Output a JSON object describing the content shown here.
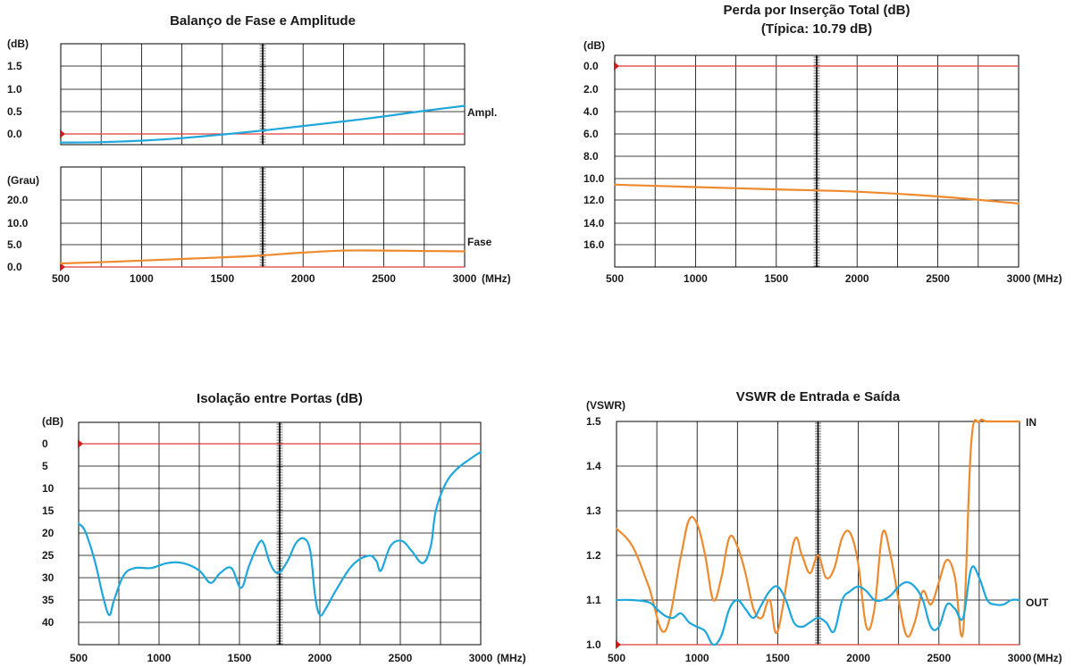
{
  "colors": {
    "blue": "#1ea7dc",
    "orange": "#ee8a2e",
    "ref": "#e23b3b",
    "grid": "#000000"
  },
  "chart_data": [
    {
      "type": "line",
      "title_lines": [
        "Balanço de Fase e Amplitude"
      ],
      "x_ticks": [
        "500",
        "1000",
        "1500",
        "2000",
        "2500",
        "3000"
      ],
      "x_unit": "(MHz)",
      "xlim": [
        500,
        3000
      ],
      "panels": [
        {
          "ylabel": "(dB)",
          "y_ticks": [
            "1.5",
            "1.0",
            "0.5",
            "0.0"
          ],
          "ylim": [
            0.0,
            2.0
          ],
          "invert_y": false,
          "series": [
            {
              "name": "Ampl.",
              "color": "blue",
              "x": [
                500,
                750,
                1000,
                1250,
                1500,
                1750,
                2000,
                2250,
                2500,
                2750,
                3000
              ],
              "y": [
                0.04,
                0.05,
                0.08,
                0.13,
                0.2,
                0.28,
                0.37,
                0.46,
                0.56,
                0.67,
                0.77
              ]
            }
          ]
        },
        {
          "ylabel": "(Grau)",
          "y_ticks": [
            "20.0",
            "10.0",
            "5.0",
            "0.0"
          ],
          "ylim": [
            0,
            25
          ],
          "invert_y": false,
          "series": [
            {
              "name": "Fase",
              "color": "orange",
              "x": [
                500,
                750,
                1000,
                1250,
                1500,
                1750,
                2000,
                2250,
                2500,
                2750,
                3000
              ],
              "y": [
                0.9,
                1.2,
                1.6,
                2.0,
                2.4,
                2.9,
                3.6,
                4.1,
                4.1,
                4.0,
                3.9
              ]
            }
          ]
        }
      ]
    },
    {
      "type": "line",
      "title_lines": [
        "Perda por Inserção Total (dB)",
        "(Típica: 10.79 dB)"
      ],
      "x_ticks": [
        "500",
        "1000",
        "1500",
        "2000",
        "2500",
        "3000"
      ],
      "x_unit": "(MHz)",
      "xlim": [
        500,
        3000
      ],
      "panels": [
        {
          "ylabel": "(dB)",
          "y_ticks": [
            "0.0",
            "2.0",
            "4.0",
            "6.0",
            "8.0",
            "10.0",
            "12.0",
            "14.0",
            "16.0"
          ],
          "ylim": [
            0,
            18
          ],
          "invert_y": true,
          "series": [
            {
              "name": "",
              "color": "orange",
              "x": [
                500,
                1000,
                1500,
                2000,
                2500,
                3000
              ],
              "y": [
                11.0,
                11.2,
                11.4,
                11.6,
                12.0,
                12.6
              ]
            }
          ]
        }
      ]
    },
    {
      "type": "line",
      "title_lines": [
        "Isolação entre Portas (dB)"
      ],
      "x_ticks": [
        "500",
        "1000",
        "1500",
        "2000",
        "2500",
        "3000"
      ],
      "x_unit": "(MHz)",
      "xlim": [
        500,
        3000
      ],
      "panels": [
        {
          "ylabel": "(dB)",
          "y_ticks": [
            "0",
            "5",
            "10",
            "15",
            "20",
            "25",
            "30",
            "35",
            "40"
          ],
          "ylim": [
            0,
            45
          ],
          "invert_y": true,
          "series": [
            {
              "name": "",
              "color": "blue",
              "x": [
                500,
                540,
                600,
                650,
                690,
                720,
                780,
                850,
                950,
                1050,
                1150,
                1250,
                1320,
                1380,
                1450,
                1510,
                1560,
                1620,
                1650,
                1690,
                1740,
                1800,
                1850,
                1900,
                1940,
                1970,
                2000,
                2040,
                2100,
                2200,
                2300,
                2350,
                2380,
                2440,
                2510,
                2570,
                2640,
                2690,
                2720,
                2780,
                2850,
                2930,
                3000
              ],
              "y": [
                20.5,
                22,
                28,
                35,
                39,
                36,
                31,
                29.5,
                29.5,
                28.5,
                28.5,
                30,
                32.5,
                30.5,
                29.5,
                33.5,
                29,
                24.5,
                24.5,
                28.5,
                30.5,
                28,
                24.5,
                23.5,
                26,
                35,
                39,
                37.5,
                34,
                29,
                27,
                28,
                30,
                25,
                24,
                26,
                28.5,
                25,
                18,
                12.5,
                9.5,
                7.5,
                6
              ]
            }
          ]
        }
      ]
    },
    {
      "type": "line",
      "title_lines": [
        "VSWR de Entrada e Saída"
      ],
      "x_ticks": [
        "500",
        "1000",
        "1500",
        "2000",
        "2500",
        "3000"
      ],
      "x_unit": "(MHz)",
      "xlim": [
        500,
        3000
      ],
      "panels": [
        {
          "ylabel": "(VSWR)",
          "y_ticks": [
            "1.5",
            "1.4",
            "1.3",
            "1.2",
            "1.1",
            "1.0"
          ],
          "ylim": [
            1.0,
            1.5
          ],
          "invert_y": false,
          "series": [
            {
              "name": "IN",
              "color": "orange",
              "x": [
                500,
                600,
                700,
                800,
                900,
                950,
                1000,
                1050,
                1100,
                1150,
                1200,
                1250,
                1300,
                1350,
                1400,
                1450,
                1500,
                1600,
                1650,
                1700,
                1750,
                1800,
                1850,
                1900,
                1950,
                2000,
                2050,
                2100,
                2150,
                2200,
                2250,
                2300,
                2350,
                2400,
                2450,
                2500,
                2550,
                2600,
                2650,
                2700,
                2750,
                2800,
                2900,
                3000
              ],
              "y": [
                1.26,
                1.22,
                1.13,
                1.03,
                1.2,
                1.28,
                1.27,
                1.2,
                1.1,
                1.15,
                1.24,
                1.22,
                1.16,
                1.08,
                1.06,
                1.1,
                1.03,
                1.23,
                1.2,
                1.16,
                1.2,
                1.15,
                1.17,
                1.24,
                1.25,
                1.18,
                1.04,
                1.08,
                1.25,
                1.2,
                1.1,
                1.02,
                1.05,
                1.12,
                1.09,
                1.14,
                1.19,
                1.15,
                1.03,
                1.45,
                1.5,
                1.5,
                1.5,
                1.5
              ]
            },
            {
              "name": "OUT",
              "color": "blue",
              "x": [
                500,
                600,
                700,
                750,
                800,
                850,
                900,
                950,
                1000,
                1050,
                1100,
                1150,
                1200,
                1250,
                1300,
                1350,
                1400,
                1450,
                1500,
                1550,
                1600,
                1650,
                1700,
                1750,
                1800,
                1850,
                1900,
                1950,
                2000,
                2050,
                2100,
                2150,
                2200,
                2250,
                2300,
                2350,
                2400,
                2450,
                2500,
                2550,
                2600,
                2650,
                2700,
                2750,
                2800,
                2850,
                2900,
                2950,
                3000
              ],
              "y": [
                1.1,
                1.1,
                1.095,
                1.08,
                1.065,
                1.06,
                1.07,
                1.05,
                1.04,
                1.03,
                1.0,
                1.02,
                1.08,
                1.1,
                1.08,
                1.06,
                1.09,
                1.12,
                1.13,
                1.1,
                1.05,
                1.04,
                1.05,
                1.06,
                1.05,
                1.03,
                1.1,
                1.12,
                1.13,
                1.12,
                1.1,
                1.1,
                1.11,
                1.13,
                1.14,
                1.13,
                1.1,
                1.04,
                1.04,
                1.09,
                1.08,
                1.06,
                1.17,
                1.15,
                1.1,
                1.09,
                1.09,
                1.1,
                1.1
              ]
            }
          ]
        }
      ]
    }
  ]
}
